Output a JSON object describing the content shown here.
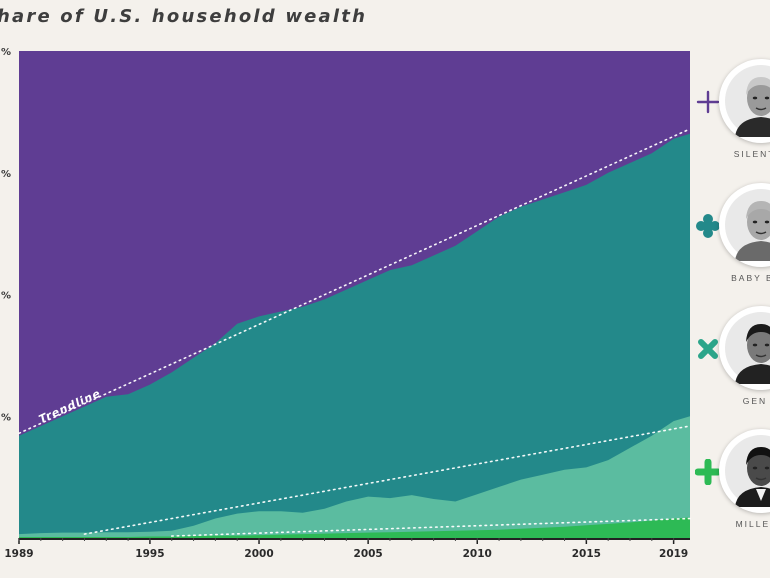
{
  "chart_data": {
    "type": "area",
    "title": "hare of U.S. household wealth",
    "xlabel": "",
    "ylabel": "",
    "xlim": [
      1989.0,
      2019.75
    ],
    "ylim": [
      0,
      100
    ],
    "x_ticks": [
      "1989",
      "1995",
      "2000",
      "2005",
      "2010",
      "2015",
      "2019"
    ],
    "y_tick_labels": [
      "%",
      "%",
      "%",
      "%"
    ],
    "stacking": "cumulative share from bottom",
    "x": [
      1989.0,
      1990.0,
      1991.0,
      1992.0,
      1993.0,
      1994.0,
      1995.0,
      1996.0,
      1997.0,
      1998.0,
      1999.0,
      2000.0,
      2001.0,
      2002.0,
      2003.0,
      2004.0,
      2005.0,
      2006.0,
      2007.0,
      2008.0,
      2009.0,
      2010.0,
      2011.0,
      2012.0,
      2013.0,
      2014.0,
      2015.0,
      2016.0,
      2017.0,
      2018.0,
      2019.0,
      2019.75
    ],
    "series": [
      {
        "name": "Millennials",
        "color": "#2dba55",
        "values": [
          0.2,
          0.2,
          0.2,
          0.2,
          0.2,
          0.2,
          0.3,
          0.3,
          0.4,
          0.5,
          0.5,
          0.6,
          0.7,
          0.8,
          0.9,
          1.0,
          1.1,
          1.2,
          1.3,
          1.4,
          1.5,
          1.6,
          1.7,
          1.9,
          2.1,
          2.3,
          2.6,
          2.9,
          3.2,
          3.6,
          4.0,
          4.2
        ]
      },
      {
        "name": "Gen X",
        "color": "#5bbca0",
        "values": [
          0.8,
          1.0,
          1.1,
          1.1,
          1.2,
          1.2,
          1.3,
          1.5,
          2.5,
          4.0,
          5.0,
          5.5,
          5.5,
          5.2,
          6.0,
          7.5,
          8.5,
          8.2,
          8.8,
          8.0,
          7.5,
          9.0,
          10.5,
          12.0,
          13.0,
          14.0,
          14.5,
          16.0,
          18.5,
          21.0,
          24.0,
          25.0
        ]
      },
      {
        "name": "Baby Boomers",
        "color": "#23898a",
        "values": [
          21.0,
          23.0,
          25.0,
          27.0,
          29.0,
          29.5,
          31.5,
          34.0,
          37.0,
          40.0,
          44.0,
          45.5,
          46.5,
          47.5,
          49.0,
          51.0,
          53.0,
          55.0,
          56.0,
          58.0,
          60.0,
          63.0,
          66.0,
          68.0,
          69.5,
          71.0,
          72.5,
          75.0,
          77.0,
          79.0,
          82.0,
          83.0
        ]
      },
      {
        "name": "Silent G",
        "color": "#5f3d93",
        "values": [
          100,
          100,
          100,
          100,
          100,
          100,
          100,
          100,
          100,
          100,
          100,
          100,
          100,
          100,
          100,
          100,
          100,
          100,
          100,
          100,
          100,
          100,
          100,
          100,
          100,
          100,
          100,
          100,
          100,
          100,
          100,
          100
        ]
      }
    ],
    "trendlines": [
      {
        "series": "Baby Boomers",
        "label": "Trendline",
        "from": [
          1989.0,
          21.5
        ],
        "to": [
          2019.75,
          84.0
        ]
      },
      {
        "series": "Gen X",
        "from": [
          1992.0,
          0.8
        ],
        "to": [
          2019.75,
          23.0
        ]
      },
      {
        "series": "Millennials",
        "from": [
          1996.0,
          0.4
        ],
        "to": [
          2019.75,
          4.0
        ]
      }
    ],
    "legend_position": "right",
    "grid": false
  },
  "legend": [
    {
      "label": "SILENT G",
      "color": "#5f3d93",
      "marker": "thin-cross",
      "portrait_icon": "elderly-man-portrait-icon"
    },
    {
      "label": "BABY BOO",
      "color": "#23898a",
      "marker": "clover-cross",
      "portrait_icon": "elderly-woman-portrait-icon"
    },
    {
      "label": "GEN X",
      "color": "#2ca58a",
      "marker": "x-cross",
      "portrait_icon": "woman-portrait-icon"
    },
    {
      "label": "MILLENN",
      "color": "#2dba55",
      "marker": "rounded-cross",
      "portrait_icon": "man-portrait-icon"
    }
  ]
}
